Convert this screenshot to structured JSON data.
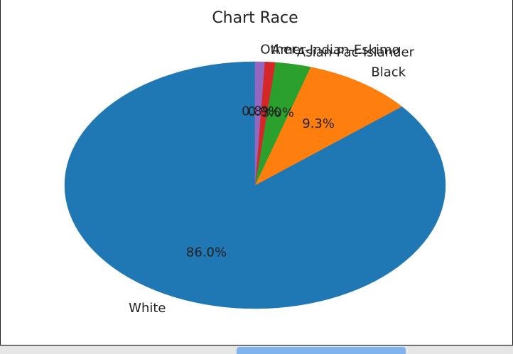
{
  "chart_data": {
    "type": "pie",
    "title": "Chart Race",
    "slices": [
      {
        "label": "White",
        "pct_label": "86.0%",
        "value": 86.0,
        "color": "#1f77b4"
      },
      {
        "label": "Black",
        "pct_label": "9.3%",
        "value": 9.3,
        "color": "#ff7f0e"
      },
      {
        "label": "Asian-Pac-Islander",
        "pct_label": "3.0%",
        "value": 3.0,
        "color": "#2ca02c"
      },
      {
        "label": "Amer-Indian-Eskimo",
        "pct_label": "0.9%",
        "value": 0.9,
        "color": "#d62728"
      },
      {
        "label": "Other",
        "pct_label": "0.8%",
        "value": 0.8,
        "color": "#9467bd"
      }
    ],
    "start_angle_deg": 90,
    "direction": "counterclockwise",
    "legend": "none"
  },
  "bottom_bar": {
    "chip_text": "",
    "right_text": ""
  }
}
